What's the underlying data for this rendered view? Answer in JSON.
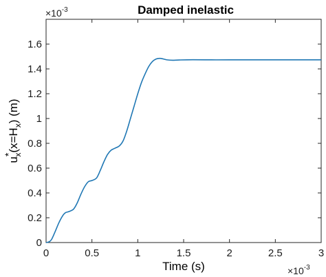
{
  "chart_data": {
    "type": "line",
    "title": "Damped inelastic",
    "xlabel": "Time (s)",
    "ylabel": {
      "base": "u",
      "sub": "x",
      "sup": "*",
      "arg_open": "(x=H",
      "arg_sub": "x",
      "arg_close": ") (m)"
    },
    "x_multiplier": {
      "base": "×10",
      "exp": "-3"
    },
    "y_multiplier": {
      "base": "×10",
      "exp": "-3"
    },
    "xlim": [
      0,
      3
    ],
    "ylim": [
      0,
      1.8
    ],
    "xticks": [
      0,
      0.5,
      1,
      1.5,
      2,
      2.5,
      3
    ],
    "xtick_labels": [
      "0",
      "0.5",
      "1",
      "1.5",
      "2",
      "2.5",
      "3"
    ],
    "yticks": [
      0,
      0.2,
      0.4,
      0.6,
      0.8,
      1.0,
      1.2,
      1.4,
      1.6
    ],
    "ytick_labels": [
      "0",
      "0.2",
      "0.4",
      "0.6",
      "0.8",
      "1",
      "1.2",
      "1.4",
      "1.6"
    ],
    "grid": false,
    "series": [
      {
        "color": "#1f77b4",
        "x": [
          0,
          0.03,
          0.06,
          0.1,
          0.14,
          0.18,
          0.21,
          0.25,
          0.3,
          0.34,
          0.38,
          0.42,
          0.46,
          0.5,
          0.55,
          0.59,
          0.63,
          0.67,
          0.71,
          0.75,
          0.8,
          0.84,
          0.88,
          0.92,
          0.96,
          1.0,
          1.04,
          1.08,
          1.12,
          1.16,
          1.2,
          1.24,
          1.28,
          1.32,
          1.38,
          1.45,
          1.6,
          1.8,
          2.0,
          2.5,
          3.0
        ],
        "y": [
          0.0,
          0.005,
          0.025,
          0.09,
          0.16,
          0.215,
          0.24,
          0.25,
          0.27,
          0.32,
          0.39,
          0.45,
          0.49,
          0.5,
          0.52,
          0.58,
          0.65,
          0.71,
          0.745,
          0.76,
          0.78,
          0.82,
          0.9,
          1.0,
          1.1,
          1.2,
          1.29,
          1.36,
          1.42,
          1.46,
          1.48,
          1.485,
          1.48,
          1.473,
          1.47,
          1.472,
          1.474,
          1.473,
          1.473,
          1.473,
          1.473
        ]
      }
    ]
  }
}
